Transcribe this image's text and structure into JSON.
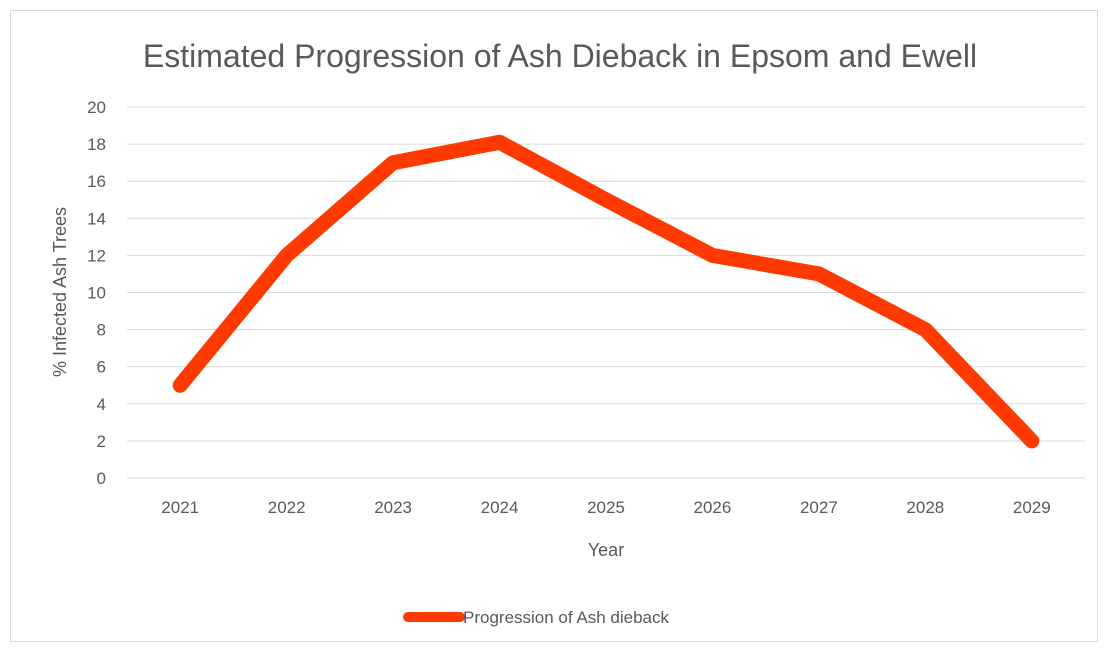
{
  "chart_data": {
    "type": "line",
    "title": "Estimated Progression of Ash Dieback in Epsom and Ewell",
    "xlabel": "Year",
    "ylabel": "% Infected Ash Trees",
    "categories": [
      "2021",
      "2022",
      "2023",
      "2024",
      "2025",
      "2026",
      "2027",
      "2028",
      "2029"
    ],
    "series": [
      {
        "name": "Progression of Ash dieback",
        "values": [
          5,
          12,
          17,
          18.1,
          15,
          12,
          11,
          8,
          2
        ]
      }
    ],
    "ylim": [
      0,
      20
    ],
    "yticks": [
      0,
      2,
      4,
      6,
      8,
      10,
      12,
      14,
      16,
      18,
      20
    ],
    "grid": true,
    "legend": "bottom",
    "colors": {
      "series": "#ff3a00",
      "grid": "#d9d9d9",
      "text": "#595959"
    }
  }
}
